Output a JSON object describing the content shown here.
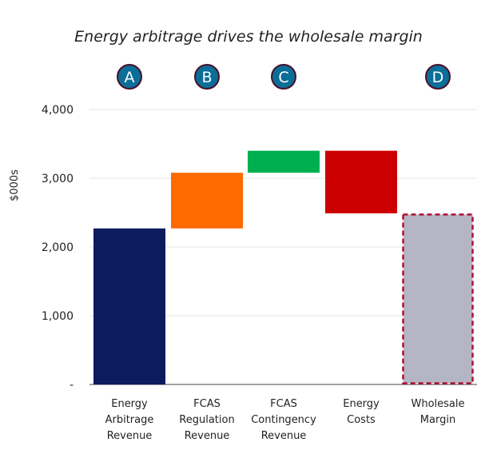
{
  "chart_data": {
    "type": "waterfall",
    "title": "Energy arbitrage drives the wholesale margin",
    "ylabel": "$000s",
    "xlabel": "",
    "ylim": [
      0,
      4000
    ],
    "yticks": [
      {
        "value": 0,
        "label": "-"
      },
      {
        "value": 1000,
        "label": "1,000"
      },
      {
        "value": 2000,
        "label": "2,000"
      },
      {
        "value": 3000,
        "label": "3,000"
      },
      {
        "value": 4000,
        "label": "4,000"
      }
    ],
    "grid": true,
    "bars": [
      {
        "category": [
          "Energy",
          "Arbitrage",
          "Revenue"
        ],
        "start": 0,
        "end": 2270,
        "color": "#0c1a5e",
        "kind": "total",
        "badge": "A"
      },
      {
        "category": [
          "FCAS",
          "Regulation",
          "Revenue"
        ],
        "start": 2270,
        "end": 3080,
        "color": "#ff6a00",
        "kind": "increase",
        "badge": "B"
      },
      {
        "category": [
          "FCAS",
          "Contingency",
          "Revenue"
        ],
        "start": 3080,
        "end": 3400,
        "color": "#00b050",
        "kind": "increase",
        "badge": "C"
      },
      {
        "category": [
          "Energy",
          "Costs"
        ],
        "start": 3400,
        "end": 2490,
        "color": "#cc0000",
        "kind": "decrease",
        "badge": ""
      },
      {
        "category": [
          "Wholesale",
          "Margin"
        ],
        "start": 0,
        "end": 2490,
        "color": "#b4b6c6",
        "border": "#b01030",
        "kind": "result",
        "badge": "D"
      }
    ],
    "badge_style": {
      "fill": "#0b6e99",
      "stroke": "#4a0f2a",
      "text_color": "#ffffff"
    },
    "colors": {
      "grid": "#e6e6e6",
      "axis": "#444444",
      "text": "#222222"
    }
  }
}
